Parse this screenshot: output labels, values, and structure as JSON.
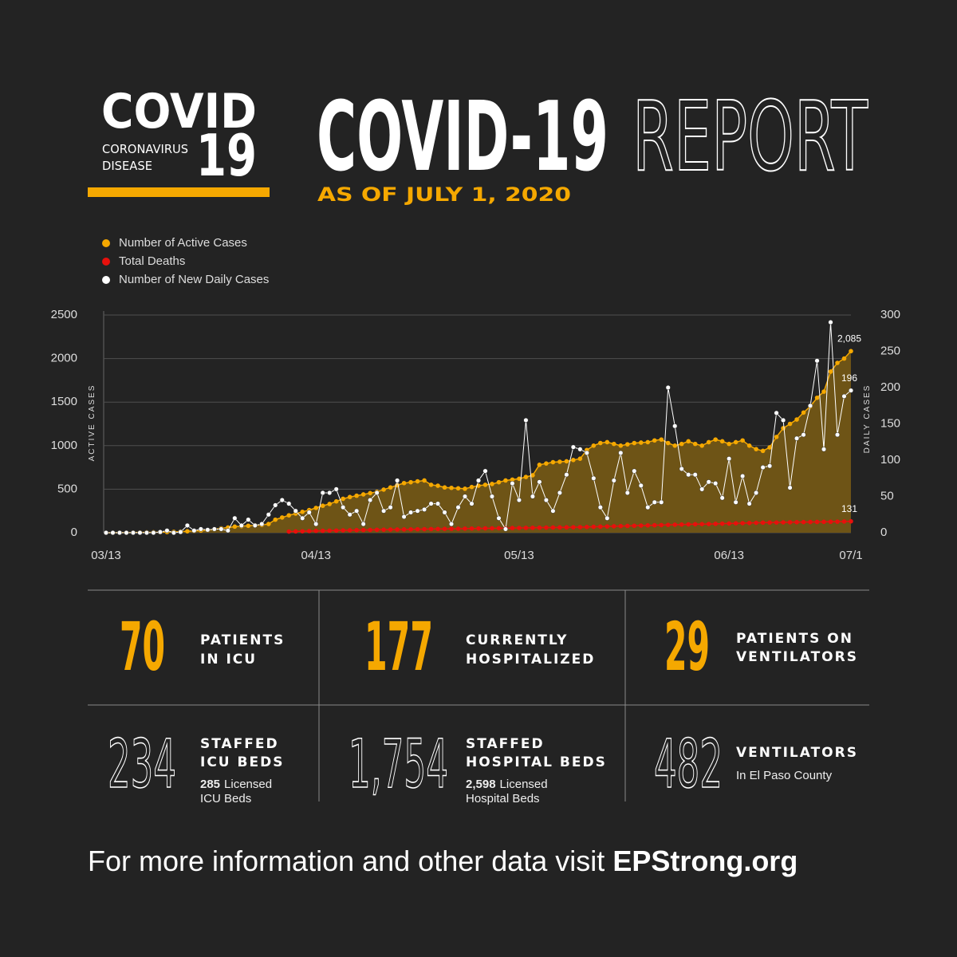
{
  "logo": {
    "word": "COVID",
    "line1": "CORONAVIRUS",
    "line2": "DISEASE",
    "number": "19"
  },
  "header": {
    "title": "COVID-19",
    "title2": "REPORT",
    "subtitle": "AS OF JULY 1, 2020"
  },
  "chart_data": {
    "type": "line",
    "ylabel": "ACTIVE CASES",
    "y2label": "DAILY CASES",
    "ylim": [
      0,
      2500
    ],
    "yticks": [
      0,
      500,
      1000,
      1500,
      2000,
      2500
    ],
    "y2lim": [
      0,
      300
    ],
    "y2ticks": [
      0,
      50,
      100,
      150,
      200,
      250,
      300
    ],
    "grid": true,
    "legend": "top-left",
    "categories": [
      "03/13",
      null,
      null,
      null,
      null,
      null,
      null,
      null,
      null,
      null,
      null,
      null,
      null,
      null,
      null,
      null,
      null,
      null,
      null,
      null,
      null,
      null,
      null,
      null,
      null,
      null,
      null,
      null,
      null,
      null,
      null,
      "04/13",
      null,
      null,
      null,
      null,
      null,
      null,
      null,
      null,
      null,
      null,
      null,
      null,
      null,
      null,
      null,
      null,
      null,
      null,
      null,
      null,
      null,
      null,
      null,
      null,
      null,
      null,
      null,
      null,
      null,
      "05/13",
      null,
      null,
      null,
      null,
      null,
      null,
      null,
      null,
      null,
      null,
      null,
      null,
      null,
      null,
      null,
      null,
      null,
      null,
      null,
      null,
      null,
      null,
      null,
      null,
      null,
      null,
      null,
      null,
      null,
      null,
      "06/13",
      null,
      null,
      null,
      null,
      null,
      null,
      null,
      null,
      null,
      null,
      null,
      null,
      null,
      null,
      null,
      null,
      null,
      "07/1"
    ],
    "series": [
      {
        "name": "Number of Active Cases",
        "color": "#f5a800",
        "area_color": "#6e5416",
        "axis": "y",
        "values": [
          0,
          0,
          1,
          1,
          2,
          3,
          4,
          5,
          6,
          8,
          10,
          13,
          17,
          20,
          25,
          30,
          40,
          50,
          60,
          70,
          75,
          80,
          85,
          90,
          100,
          150,
          175,
          200,
          220,
          240,
          260,
          285,
          310,
          330,
          360,
          390,
          410,
          425,
          440,
          455,
          470,
          495,
          520,
          545,
          570,
          580,
          590,
          600,
          550,
          540,
          520,
          515,
          510,
          505,
          525,
          540,
          550,
          560,
          580,
          600,
          610,
          620,
          640,
          660,
          780,
          795,
          810,
          815,
          820,
          835,
          850,
          950,
          1000,
          1030,
          1040,
          1020,
          1000,
          1015,
          1030,
          1035,
          1040,
          1060,
          1070,
          1030,
          1000,
          1020,
          1050,
          1020,
          1000,
          1040,
          1070,
          1050,
          1020,
          1040,
          1060,
          1000,
          960,
          940,
          980,
          1100,
          1200,
          1250,
          1300,
          1380,
          1450,
          1550,
          1620,
          1850,
          1950,
          2000,
          2085
        ],
        "value_labels": {
          "110": "2,085"
        }
      },
      {
        "name": "Total Deaths",
        "color": "#e8100c",
        "axis": "y",
        "values": [
          null,
          null,
          null,
          null,
          null,
          null,
          null,
          null,
          null,
          null,
          null,
          null,
          null,
          null,
          null,
          null,
          null,
          null,
          null,
          null,
          null,
          null,
          null,
          null,
          null,
          null,
          null,
          13,
          15,
          17,
          19,
          21,
          22,
          24,
          25,
          27,
          28,
          30,
          31,
          32,
          34,
          35,
          36,
          37,
          38,
          39,
          40,
          41,
          42,
          43,
          44,
          45,
          46,
          47,
          48,
          49,
          50,
          51,
          52,
          53,
          54,
          55,
          56,
          57,
          58,
          59,
          60,
          61,
          62,
          63,
          64,
          66,
          68,
          70,
          72,
          74,
          76,
          78,
          80,
          82,
          84,
          86,
          88,
          90,
          92,
          94,
          96,
          98,
          99,
          100,
          102,
          104,
          106,
          108,
          110,
          112,
          114,
          116,
          117,
          118,
          119,
          120,
          121,
          122,
          123,
          124,
          125,
          126,
          127,
          129,
          131
        ]
      },
      {
        "name": "Number of New Daily Cases",
        "color": "#ffffff",
        "axis": "y2",
        "values": [
          0,
          0,
          0,
          0,
          0,
          0,
          0,
          0,
          1,
          3,
          0,
          1,
          10,
          3,
          5,
          4,
          5,
          5,
          3,
          20,
          10,
          18,
          10,
          12,
          25,
          38,
          45,
          40,
          30,
          20,
          28,
          12,
          55,
          55,
          60,
          35,
          25,
          30,
          12,
          45,
          55,
          30,
          35,
          72,
          22,
          28,
          30,
          32,
          40,
          40,
          28,
          12,
          35,
          50,
          40,
          72,
          85,
          50,
          20,
          5,
          68,
          45,
          155,
          50,
          70,
          45,
          30,
          55,
          80,
          118,
          115,
          110,
          75,
          35,
          20,
          72,
          110,
          55,
          85,
          65,
          35,
          42,
          42,
          200,
          147,
          88,
          80,
          80,
          60,
          70,
          68,
          48,
          102,
          42,
          78,
          40,
          55,
          90,
          92,
          165,
          155,
          62,
          130,
          135,
          175,
          237,
          115,
          290,
          135,
          188,
          196
        ]
      }
    ]
  },
  "stats": [
    {
      "number": "70",
      "label": [
        "PATIENTS",
        "IN ICU"
      ]
    },
    {
      "number": "177",
      "label": [
        "CURRENTLY",
        "HOSPITALIZED"
      ]
    },
    {
      "number": "29",
      "label": [
        "PATIENTS ON",
        "VENTILATORS"
      ]
    },
    {
      "number": "234",
      "label": [
        "STAFFED",
        "ICU BEDS"
      ],
      "note_number": "285",
      "note": [
        "Licensed",
        "ICU Beds"
      ]
    },
    {
      "number": "1,754",
      "label": [
        "STAFFED",
        "HOSPITAL BEDS"
      ],
      "note_number": "2,598",
      "note": [
        "Licensed",
        "Hospital Beds"
      ]
    },
    {
      "number": "482",
      "label": [
        "VENTILATORS"
      ],
      "note": [
        "In El Paso County"
      ]
    }
  ],
  "footer": {
    "text": "For more information and other data visit",
    "link": "EPStrong.org"
  }
}
